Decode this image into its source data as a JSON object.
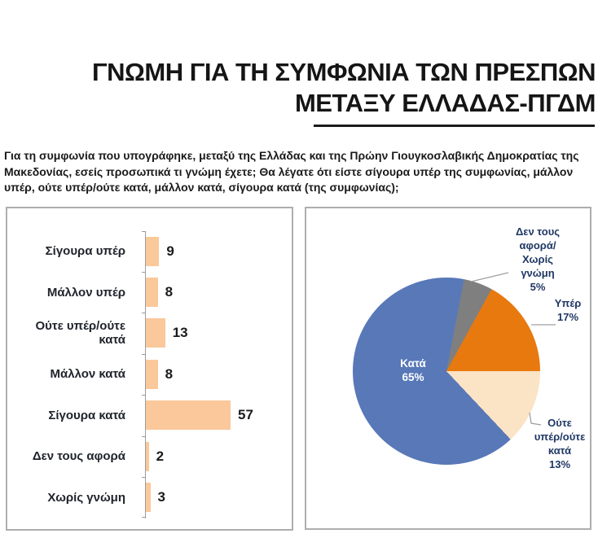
{
  "header": {
    "title_line1": "ΓΝΩΜΗ ΓΙΑ ΤΗ ΣΥΜΦΩΝΙΑ ΤΩΝ ΠΡΕΣΠΩΝ",
    "title_line2": "ΜΕΤΑΞΥ ΕΛΛΑΔΑΣ-ΠΓΔΜ"
  },
  "question": "Για τη συμφωνία που υπογράφηκε, μεταξύ της Ελλάδας και της Πρώην Γιουγκοσλαβικής Δημοκρατίας της Μακεδονίας, εσείς προσωπικά τι γνώμη έχετε; Θα λέγατε ότι είστε σίγουρα υπέρ της συμφωνίας, μάλλον υπέρ, ούτε υπέρ/ούτε κατά, μάλλον κατά, σίγουρα κατά (της συμφωνίας);",
  "palette": {
    "bar_fill": "#FAC89A",
    "pie_blue": "#5878B8",
    "pie_orange": "#E8790E",
    "pie_peach": "#FBE3C5",
    "pie_gray": "#7F7F7F",
    "label_navy": "#1F3864",
    "text_black": "#1A1A1A",
    "panel_border": "#AEAEAE"
  },
  "chart_data": [
    {
      "type": "bar",
      "orientation": "horizontal",
      "categories": [
        "Σίγουρα υπέρ",
        "Μάλλον υπέρ",
        "Ούτε υπέρ/ούτε κατά",
        "Μάλλον κατά",
        "Σίγουρα κατά",
        "Δεν τους αφορά",
        "Χωρίς γνώμη"
      ],
      "values": [
        9,
        8,
        13,
        8,
        57,
        2,
        3
      ],
      "bar_color": "#FAC89A",
      "xlim": [
        0,
        60
      ],
      "grid": false,
      "value_labels": [
        "9",
        "8",
        "13",
        "8",
        "57",
        "2",
        "3"
      ]
    },
    {
      "type": "pie",
      "labels": [
        "Κατά",
        "Υπέρ",
        "Ούτε υπέρ/ούτε κατά",
        "Δεν τους αφορά/Χωρίς γνώμη"
      ],
      "values": [
        65,
        17,
        13,
        5
      ],
      "colors": [
        "#5878B8",
        "#E8790E",
        "#FBE3C5",
        "#7F7F7F"
      ],
      "start_angle_deg": 10.8,
      "display_order": [
        3,
        1,
        2,
        0
      ],
      "labels_display": {
        "against": "Κατά\n65%",
        "for": "Υπέρ\n17%",
        "neither": "Ούτε\nυπέρ/ούτε\nκατά\n13%",
        "no_concern": "Δεν τους\nαφορά/\nΧωρίς\nγνώμη\n5%"
      }
    }
  ]
}
